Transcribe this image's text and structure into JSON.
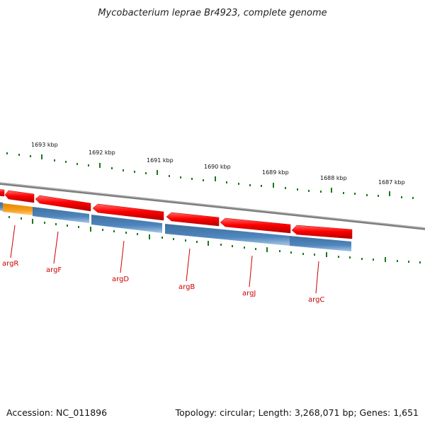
{
  "title": "Mycobacterium leprae Br4923, complete genome",
  "footer": {
    "accession": "Accession: NC_011896",
    "summary": "Topology: circular; Length: 3,268,071 bp; Genes: 1,651"
  },
  "scale_labels": [
    "1693 kbp",
    "1692 kbp",
    "1691 kbp",
    "1690 kbp",
    "1689 kbp",
    "1688 kbp",
    "1687 kbp"
  ],
  "genes": [
    "argR",
    "argF",
    "argD",
    "argB",
    "argJ",
    "argC"
  ],
  "colors": {
    "forward_feature": "#ff0000",
    "cds_track": "#4a7fb5",
    "highlight_feature": "#f5a020",
    "backbone": "#808080",
    "tick": "#1a7a1a",
    "gene_label": "#cc0000"
  }
}
